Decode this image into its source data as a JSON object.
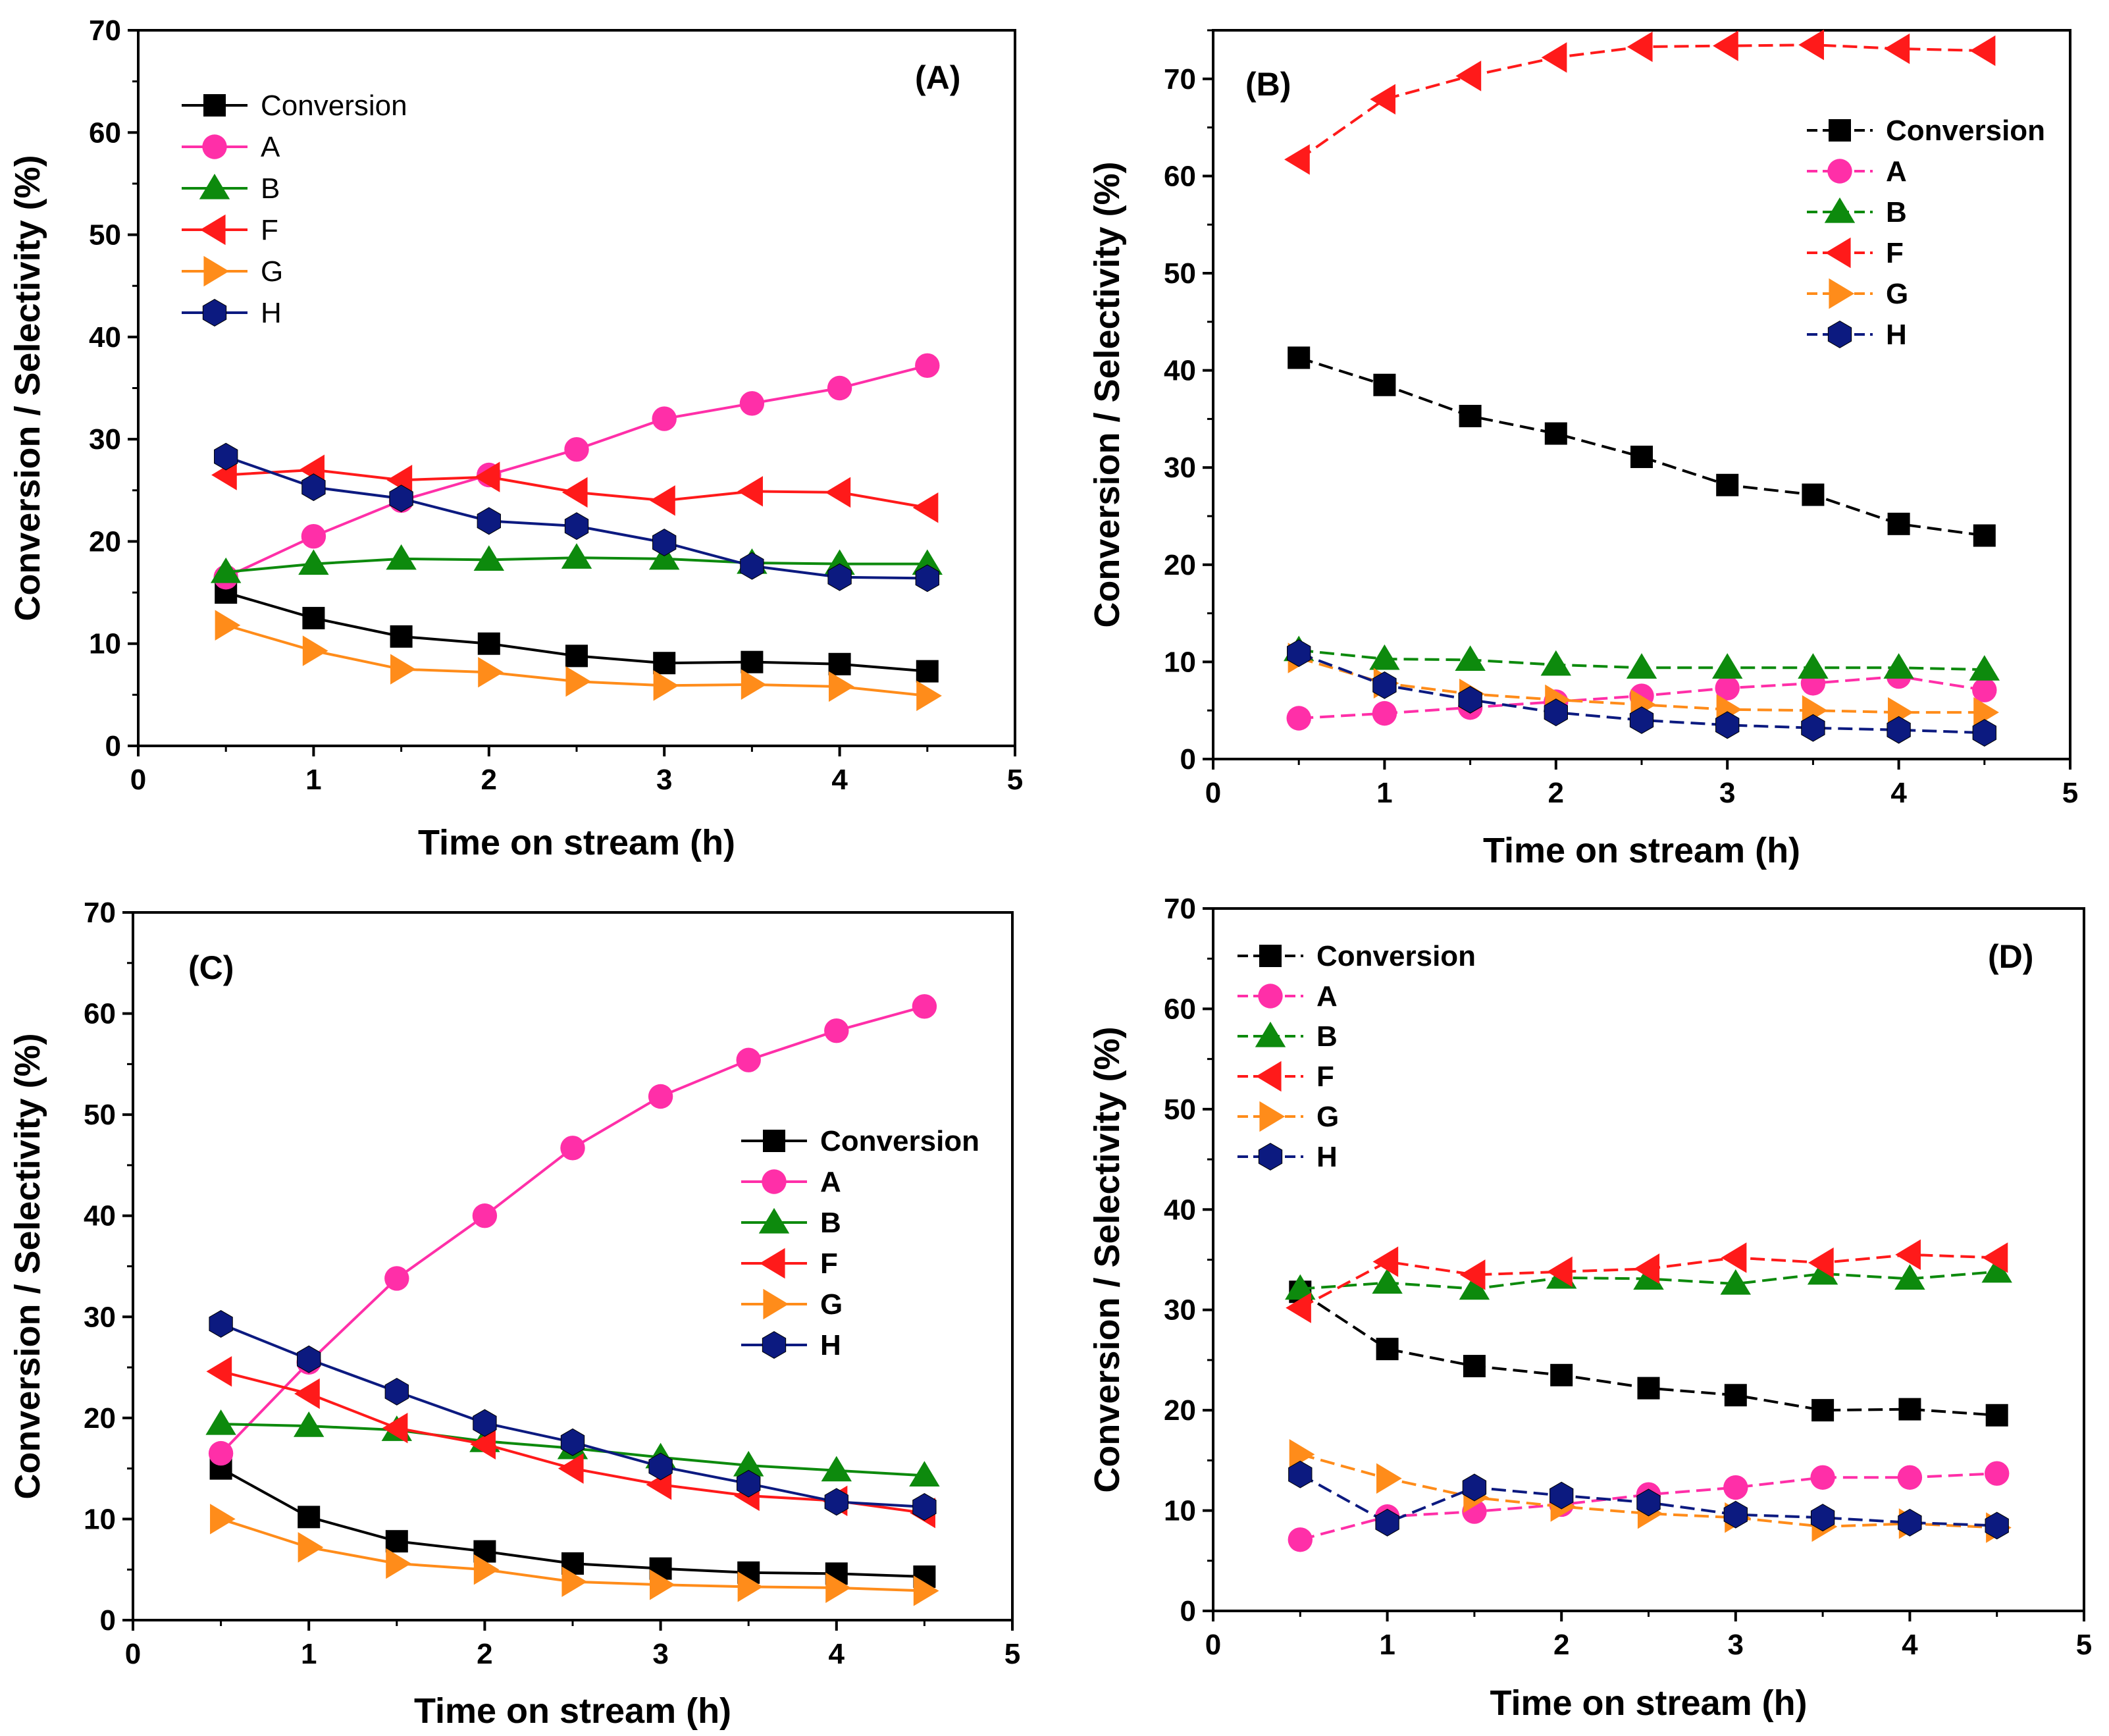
{
  "figure": {
    "background": "#ffffff"
  },
  "marker_styles": {
    "Conversion": {
      "color": "#000000",
      "marker": "square"
    },
    "A": {
      "color": "#ff2fa8",
      "marker": "circle"
    },
    "B": {
      "color": "#0d8a0d",
      "marker": "triangle-up"
    },
    "F": {
      "color": "#ff1a1a",
      "marker": "triangle-left"
    },
    "G": {
      "color": "#ff8c1a",
      "marker": "triangle-right"
    },
    "H": {
      "color": "#0c1a80",
      "marker": "hexagon"
    }
  },
  "chart_data": [
    {
      "type": "line",
      "panel_label": "(A)",
      "xlabel": "Time on stream (h)",
      "ylabel": "Conversion / Selectivity (%)",
      "xlim": [
        0,
        5
      ],
      "ylim": [
        0,
        70
      ],
      "xticks": [
        "0",
        "1",
        "2",
        "3",
        "4",
        "5"
      ],
      "yticks": [
        "0",
        "10",
        "20",
        "30",
        "40",
        "50",
        "60",
        "70"
      ],
      "legend_position": "top-left",
      "line_style": "solid",
      "x": [
        0.5,
        1.0,
        1.5,
        2.0,
        2.5,
        3.0,
        3.5,
        4.0,
        4.5
      ],
      "series": [
        {
          "name": "Conversion",
          "values": [
            15.0,
            12.5,
            10.7,
            10.0,
            8.8,
            8.1,
            8.2,
            8.0,
            7.3
          ]
        },
        {
          "name": "A",
          "values": [
            16.5,
            20.5,
            24.0,
            26.5,
            29.0,
            32.0,
            33.5,
            35.0,
            37.2
          ]
        },
        {
          "name": "B",
          "values": [
            17.0,
            17.8,
            18.3,
            18.2,
            18.4,
            18.3,
            17.9,
            17.8,
            17.8
          ]
        },
        {
          "name": "F",
          "values": [
            26.5,
            27.0,
            26.0,
            26.3,
            24.8,
            24.0,
            24.9,
            24.8,
            23.3
          ]
        },
        {
          "name": "G",
          "values": [
            11.8,
            9.3,
            7.5,
            7.2,
            6.3,
            5.9,
            6.0,
            5.8,
            4.9
          ]
        },
        {
          "name": "H",
          "values": [
            28.3,
            25.3,
            24.2,
            22.0,
            21.5,
            19.9,
            17.6,
            16.5,
            16.4
          ]
        }
      ]
    },
    {
      "type": "line",
      "panel_label": "(B)",
      "xlabel": "Time on stream (h)",
      "ylabel": "Conversion / Selectivity (%)",
      "xlim": [
        0,
        5
      ],
      "ylim": [
        0,
        75
      ],
      "xticks": [
        "0",
        "1",
        "2",
        "3",
        "4",
        "5"
      ],
      "yticks": [
        "0",
        "10",
        "20",
        "30",
        "40",
        "50",
        "60",
        "70"
      ],
      "legend_position": "top-right",
      "line_style": "dashed",
      "x": [
        0.5,
        1.0,
        1.5,
        2.0,
        2.5,
        3.0,
        3.5,
        4.0,
        4.5
      ],
      "series": [
        {
          "name": "Conversion",
          "values": [
            41.3,
            38.5,
            35.3,
            33.5,
            31.1,
            28.2,
            27.2,
            24.2,
            23.0
          ]
        },
        {
          "name": "A",
          "values": [
            4.2,
            4.7,
            5.3,
            5.9,
            6.5,
            7.3,
            7.8,
            8.5,
            7.1
          ]
        },
        {
          "name": "B",
          "values": [
            11.2,
            10.3,
            10.2,
            9.7,
            9.4,
            9.4,
            9.4,
            9.4,
            9.2
          ]
        },
        {
          "name": "F",
          "values": [
            61.7,
            67.9,
            70.3,
            72.2,
            73.3,
            73.4,
            73.5,
            73.1,
            72.9
          ]
        },
        {
          "name": "G",
          "values": [
            10.4,
            7.8,
            6.7,
            6.1,
            5.6,
            5.1,
            5.0,
            4.8,
            4.8
          ]
        },
        {
          "name": "H",
          "values": [
            10.9,
            7.6,
            6.1,
            4.8,
            4.0,
            3.5,
            3.2,
            3.0,
            2.7
          ]
        }
      ]
    },
    {
      "type": "line",
      "panel_label": "(C)",
      "xlabel": "Time on stream (h)",
      "ylabel": "Conversion / Selectivity (%)",
      "xlim": [
        0,
        5
      ],
      "ylim": [
        0,
        70
      ],
      "xticks": [
        "0",
        "1",
        "2",
        "3",
        "4",
        "5"
      ],
      "yticks": [
        "0",
        "10",
        "20",
        "30",
        "40",
        "50",
        "60",
        "70"
      ],
      "legend_position": "center-right",
      "line_style": "solid",
      "x": [
        0.5,
        1.0,
        1.5,
        2.0,
        2.5,
        3.0,
        3.5,
        4.0,
        4.5
      ],
      "series": [
        {
          "name": "Conversion",
          "values": [
            15.0,
            10.2,
            7.8,
            6.8,
            5.6,
            5.1,
            4.7,
            4.6,
            4.3
          ]
        },
        {
          "name": "A",
          "values": [
            16.5,
            25.5,
            33.8,
            40.0,
            46.7,
            51.8,
            55.4,
            58.3,
            60.7
          ]
        },
        {
          "name": "B",
          "values": [
            19.4,
            19.2,
            18.8,
            17.7,
            17.0,
            16.1,
            15.3,
            14.8,
            14.3
          ]
        },
        {
          "name": "F",
          "values": [
            24.6,
            22.4,
            19.0,
            17.4,
            15.0,
            13.4,
            12.3,
            11.8,
            10.6
          ]
        },
        {
          "name": "G",
          "values": [
            10.0,
            7.2,
            5.6,
            5.0,
            3.8,
            3.5,
            3.3,
            3.2,
            2.9
          ]
        },
        {
          "name": "H",
          "values": [
            29.3,
            25.8,
            22.6,
            19.5,
            17.6,
            15.2,
            13.5,
            11.7,
            11.2
          ]
        }
      ]
    },
    {
      "type": "line",
      "panel_label": "(D)",
      "xlabel": "Time on stream (h)",
      "ylabel": "Conversion / Selectivity (%)",
      "xlim": [
        0,
        5
      ],
      "ylim": [
        0,
        70
      ],
      "xticks": [
        "0",
        "1",
        "2",
        "3",
        "4",
        "5"
      ],
      "yticks": [
        "0",
        "10",
        "20",
        "30",
        "40",
        "50",
        "60",
        "70"
      ],
      "legend_position": "top-left",
      "line_style": "dashed",
      "x": [
        0.5,
        1.0,
        1.5,
        2.0,
        2.5,
        3.0,
        3.5,
        4.0,
        4.5
      ],
      "series": [
        {
          "name": "Conversion",
          "values": [
            31.8,
            26.1,
            24.4,
            23.5,
            22.2,
            21.5,
            20.0,
            20.1,
            19.5
          ]
        },
        {
          "name": "A",
          "values": [
            7.1,
            9.4,
            9.9,
            10.6,
            11.6,
            12.3,
            13.3,
            13.3,
            13.7
          ]
        },
        {
          "name": "B",
          "values": [
            32.1,
            32.7,
            32.1,
            33.2,
            33.1,
            32.6,
            33.6,
            33.1,
            33.8
          ]
        },
        {
          "name": "F",
          "values": [
            30.2,
            34.8,
            33.5,
            33.8,
            34.1,
            35.2,
            34.7,
            35.5,
            35.2
          ]
        },
        {
          "name": "G",
          "values": [
            15.6,
            13.2,
            11.3,
            10.4,
            9.7,
            9.3,
            8.4,
            8.7,
            8.3
          ]
        },
        {
          "name": "H",
          "values": [
            13.6,
            8.8,
            12.3,
            11.5,
            10.8,
            9.6,
            9.3,
            8.8,
            8.5
          ]
        }
      ]
    }
  ]
}
